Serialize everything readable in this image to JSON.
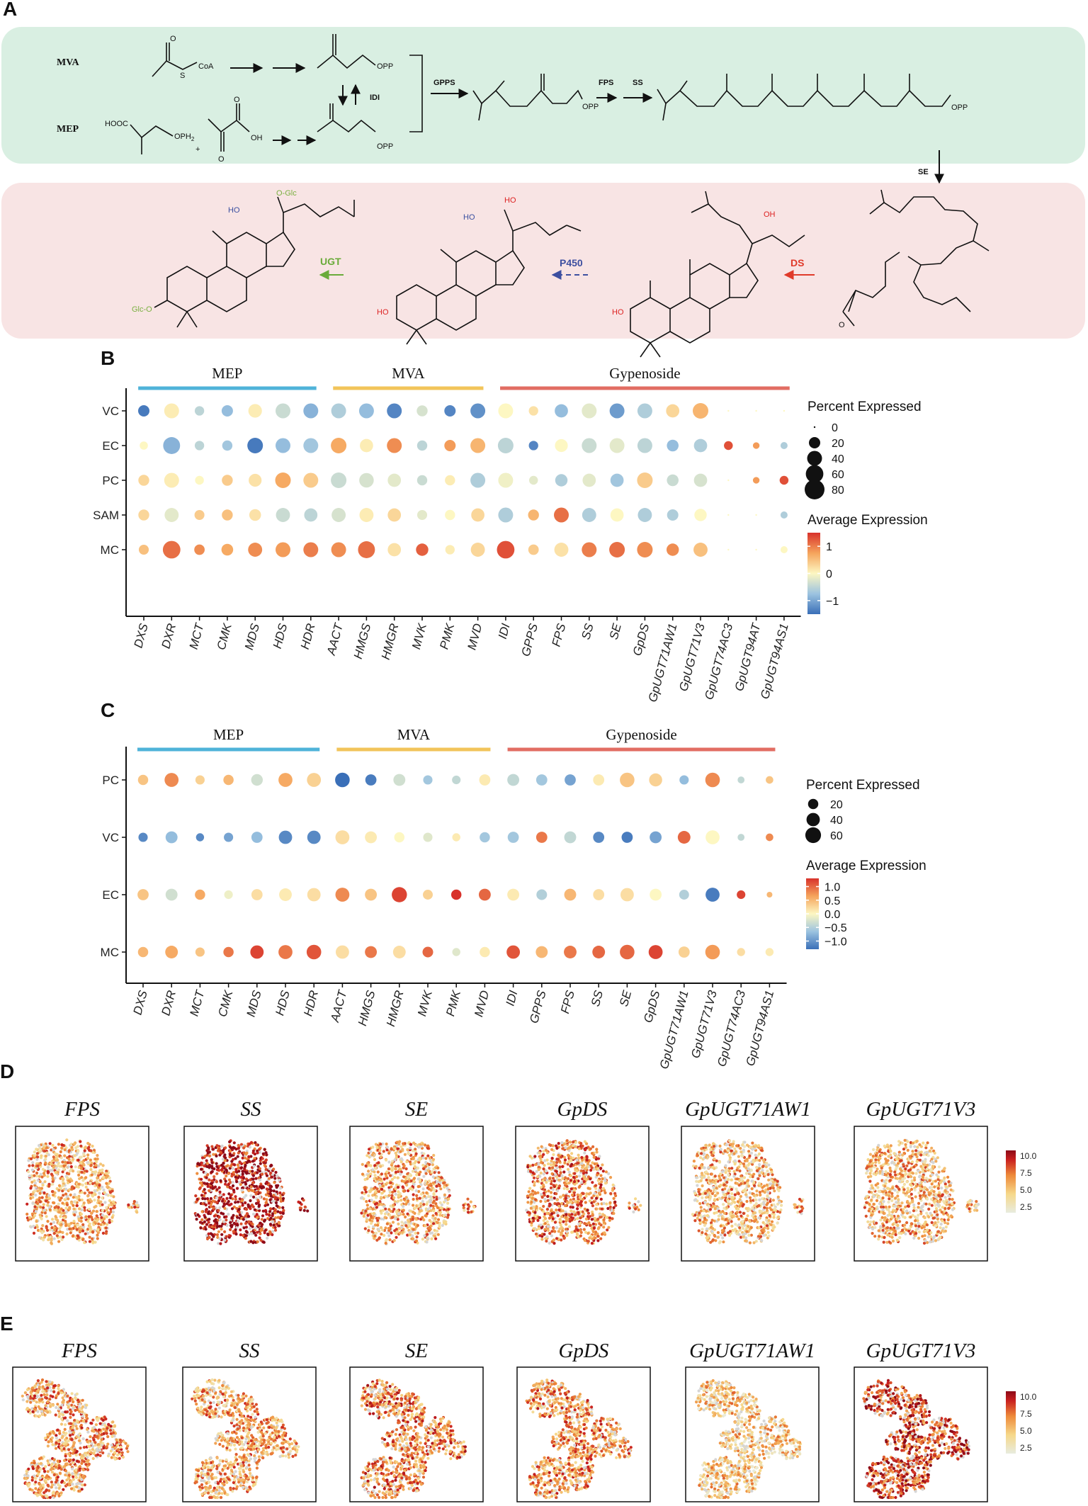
{
  "panels": {
    "a": "A",
    "b": "B",
    "c": "C",
    "d": "D",
    "e": "E"
  },
  "pathway": {
    "route1": "MVA",
    "route2": "MEP",
    "acetyl_label": "CoA",
    "hooc_label": "HOOC",
    "oph2_label": "OPH",
    "oph2_sub": "2",
    "plus": "+",
    "oh_label": "OH",
    "opp_label": "OPP",
    "idi": "IDI",
    "gpps": "GPPS",
    "fps": "FPS",
    "ss": "SS",
    "se": "SE",
    "ds": "DS",
    "p450": "P450",
    "ugt": "UGT",
    "oglc": "O-Glc",
    "glco": "Glc-O",
    "ho": "HO",
    "oh": "OH",
    "o": "O",
    "colors": {
      "top_bg": "#d9efe2",
      "bottom_bg": "#f8e4e4",
      "ugt": "#6aab3a",
      "p450": "#3d4fa0",
      "ds": "#e03a2a",
      "ho_blue": "#3a4fa0",
      "ho_red": "#dd2222",
      "glc": "#7ab040"
    }
  },
  "panel_b": {
    "chart_data": {
      "type": "dot",
      "title": "",
      "rows": [
        "VC",
        "EC",
        "PC",
        "SAM",
        "MC"
      ],
      "genes": [
        "DXS",
        "DXR",
        "MCT",
        "CMK",
        "MDS",
        "HDS",
        "HDR",
        "AACT",
        "HMGS",
        "HMGR",
        "MVK",
        "PMK",
        "MVD",
        "IDI",
        "GPPS",
        "FPS",
        "SS",
        "SE",
        "GpDS",
        "GpUGT71AW1",
        "GpUGT71V3",
        "GpUGT74AC3",
        "GpUGT94AT",
        "GpUGT94AS1"
      ],
      "groups": [
        {
          "name": "MEP",
          "start": 0,
          "end": 6,
          "color": "#4fb3d9"
        },
        {
          "name": "MVA",
          "start": 7,
          "end": 12,
          "color": "#f2c45a"
        },
        {
          "name": "Gypenoside",
          "start": 13,
          "end": 23,
          "color": "#e26d63"
        }
      ],
      "pct": [
        [
          20,
          40,
          12,
          20,
          32,
          40,
          40,
          40,
          40,
          40,
          18,
          20,
          40,
          40,
          12,
          30,
          40,
          40,
          40,
          30,
          45,
          2,
          2,
          2
        ],
        [
          8,
          55,
          12,
          15,
          45,
          40,
          40,
          45,
          30,
          40,
          15,
          20,
          40,
          45,
          12,
          28,
          40,
          40,
          40,
          22,
          30,
          10,
          4,
          5
        ],
        [
          18,
          40,
          10,
          18,
          28,
          45,
          40,
          45,
          38,
          30,
          15,
          15,
          40,
          40,
          10,
          25,
          30,
          30,
          45,
          22,
          30,
          2,
          4,
          10
        ],
        [
          18,
          35,
          14,
          18,
          22,
          35,
          30,
          35,
          35,
          30,
          14,
          15,
          30,
          40,
          18,
          40,
          35,
          30,
          35,
          20,
          25,
          2,
          2,
          5
        ],
        [
          14,
          60,
          16,
          22,
          35,
          40,
          40,
          40,
          55,
          30,
          25,
          12,
          35,
          60,
          16,
          35,
          40,
          45,
          45,
          25,
          35,
          2,
          2,
          5
        ]
      ],
      "avg": [
        [
          -1.4,
          0.1,
          -0.5,
          -0.8,
          0.1,
          -0.4,
          -0.9,
          -0.6,
          -0.8,
          -1.3,
          -0.3,
          -1.3,
          -1.2,
          0.0,
          0.2,
          -0.8,
          -0.2,
          -1.1,
          -0.6,
          0.3,
          0.6,
          0.0,
          0.0,
          0.0
        ],
        [
          0.0,
          -0.9,
          -0.5,
          -0.7,
          -1.4,
          -0.8,
          -0.7,
          0.7,
          0.1,
          0.9,
          -0.5,
          0.8,
          0.6,
          -0.5,
          -1.3,
          0.0,
          -0.4,
          -0.2,
          -0.5,
          -0.8,
          -0.6,
          1.3,
          0.8,
          -0.6
        ],
        [
          0.3,
          0.1,
          0.0,
          0.4,
          0.2,
          0.7,
          0.4,
          -0.4,
          -0.3,
          -0.2,
          -0.4,
          0.1,
          -0.6,
          -0.1,
          -0.2,
          -0.6,
          -0.2,
          -0.7,
          0.4,
          -0.4,
          -0.3,
          0.0,
          0.8,
          1.3
        ],
        [
          0.3,
          -0.2,
          0.4,
          0.5,
          0.2,
          -0.4,
          -0.5,
          -0.3,
          0.1,
          0.3,
          -0.2,
          0.0,
          0.3,
          -0.6,
          0.6,
          1.1,
          -0.6,
          0.0,
          -0.6,
          -0.6,
          0.0,
          0.0,
          0.0,
          -0.6
        ],
        [
          0.5,
          1.1,
          0.9,
          0.7,
          0.9,
          0.8,
          1.0,
          0.9,
          1.1,
          0.2,
          1.2,
          0.1,
          0.3,
          1.3,
          0.4,
          0.2,
          1.0,
          1.1,
          0.9,
          0.9,
          0.5,
          0.0,
          0.0,
          0.0
        ]
      ],
      "size_legend": {
        "title": "Percent Expressed",
        "values": [
          0,
          20,
          40,
          60,
          80
        ]
      },
      "color_legend": {
        "title": "Average Expression",
        "ticks": [
          1,
          0,
          -1
        ],
        "labels": [
          "1",
          "0",
          "−1"
        ],
        "min": -1.5,
        "max": 1.5
      }
    }
  },
  "panel_c": {
    "chart_data": {
      "type": "dot",
      "title": "",
      "rows": [
        "PC",
        "VC",
        "EC",
        "MC"
      ],
      "genes": [
        "DXS",
        "DXR",
        "MCT",
        "CMK",
        "MDS",
        "HDS",
        "HDR",
        "AACT",
        "HMGS",
        "HMGR",
        "MVK",
        "PMK",
        "MVD",
        "IDI",
        "GPPS",
        "FPS",
        "SS",
        "SE",
        "GpDS",
        "GpUGT71AW1",
        "GpUGT71V3",
        "GpUGT74AC3",
        "GpUGT94AS1"
      ],
      "groups": [
        {
          "name": "MEP",
          "start": 0,
          "end": 6,
          "color": "#4fb3d9"
        },
        {
          "name": "MVA",
          "start": 7,
          "end": 12,
          "color": "#f2c45a"
        },
        {
          "name": "Gypenoside",
          "start": 13,
          "end": 22,
          "color": "#e26d63"
        }
      ],
      "pct": [
        [
          20,
          45,
          15,
          20,
          28,
          45,
          45,
          50,
          25,
          30,
          15,
          12,
          25,
          30,
          25,
          25,
          25,
          50,
          38,
          15,
          50,
          6,
          8
        ],
        [
          15,
          30,
          10,
          15,
          25,
          40,
          40,
          45,
          30,
          20,
          15,
          10,
          20,
          25,
          25,
          30,
          25,
          25,
          30,
          35,
          45,
          6,
          8
        ],
        [
          25,
          30,
          20,
          12,
          25,
          35,
          40,
          45,
          30,
          55,
          18,
          20,
          30,
          30,
          22,
          30,
          25,
          40,
          30,
          18,
          45,
          12,
          3
        ],
        [
          20,
          35,
          15,
          20,
          40,
          45,
          50,
          40,
          30,
          35,
          22,
          10,
          20,
          40,
          30,
          35,
          35,
          50,
          45,
          25,
          50,
          10,
          10
        ]
      ],
      "avg": [
        [
          0.4,
          0.8,
          0.3,
          0.5,
          -0.3,
          0.6,
          0.3,
          -1.3,
          -1.2,
          -0.3,
          -0.6,
          -0.4,
          0.1,
          -0.4,
          -0.6,
          -0.9,
          0.1,
          0.4,
          0.3,
          -0.7,
          0.8,
          -0.4,
          0.4
        ],
        [
          -1.1,
          -0.7,
          -1.1,
          -0.9,
          -0.7,
          -1.1,
          -1.1,
          0.2,
          0.1,
          0.0,
          -0.2,
          0.1,
          -0.6,
          -0.6,
          0.9,
          -0.4,
          -1.1,
          -1.2,
          -0.9,
          1.0,
          0.0,
          -0.4,
          0.8
        ],
        [
          0.4,
          -0.3,
          0.6,
          -0.1,
          0.2,
          0.1,
          0.2,
          0.8,
          0.4,
          1.2,
          0.3,
          1.3,
          1.0,
          0.1,
          -0.5,
          0.5,
          0.2,
          0.2,
          0.0,
          -0.5,
          -1.2,
          1.2,
          0.5
        ],
        [
          0.5,
          0.6,
          0.4,
          0.9,
          1.2,
          0.9,
          1.1,
          0.2,
          0.9,
          0.2,
          1.0,
          -0.2,
          0.1,
          1.1,
          0.5,
          0.9,
          1.0,
          1.0,
          1.2,
          0.3,
          0.7,
          0.2,
          0.1
        ]
      ],
      "size_legend": {
        "title": "Percent Expressed",
        "values": [
          20,
          40,
          60
        ]
      },
      "color_legend": {
        "title": "Average Expression",
        "ticks": [
          1.0,
          0.5,
          0.0,
          -0.5,
          -1.0
        ],
        "labels": [
          "1.0",
          "0.5",
          "0.0",
          "−0.5",
          "−1.0"
        ],
        "min": -1.3,
        "max": 1.3
      }
    }
  },
  "panel_d": {
    "titles": [
      "FPS",
      "SS",
      "SE",
      "GpDS",
      "GpUGT71AW1",
      "GpUGT71V3"
    ],
    "intensity": [
      0.5,
      0.9,
      0.5,
      0.6,
      0.45,
      0.45
    ],
    "colorbar": {
      "ticks": [
        "10.0",
        "7.5",
        "5.0",
        "2.5"
      ]
    }
  },
  "panel_e": {
    "titles": [
      "FPS",
      "SS",
      "SE",
      "GpDS",
      "GpUGT71AW1",
      "GpUGT71V3"
    ],
    "intensity": [
      0.55,
      0.5,
      0.6,
      0.55,
      0.35,
      0.75
    ],
    "colorbar": {
      "ticks": [
        "10.0",
        "7.5",
        "5.0",
        "2.5"
      ]
    }
  }
}
